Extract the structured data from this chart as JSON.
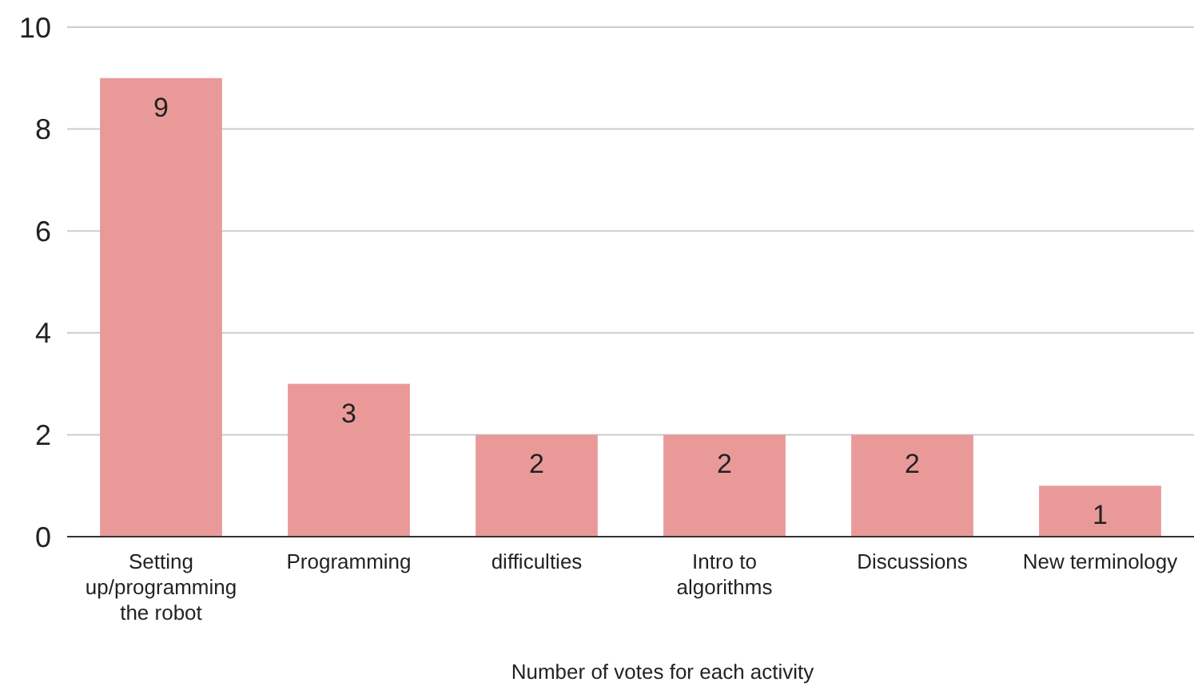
{
  "chart_data": {
    "type": "bar",
    "xlabel": "Number of votes for each activity",
    "categories": [
      "Setting up/programming the robot",
      "Programming",
      "difficulties",
      "Intro to algorithms",
      "Discussions",
      "New terminology"
    ],
    "values": [
      9,
      3,
      2,
      2,
      2,
      1
    ],
    "color": "#ea9999",
    "ylim": [
      0,
      10
    ],
    "yticks": [
      0,
      2,
      4,
      6,
      8,
      10
    ],
    "grid": "y",
    "data_labels": true
  }
}
